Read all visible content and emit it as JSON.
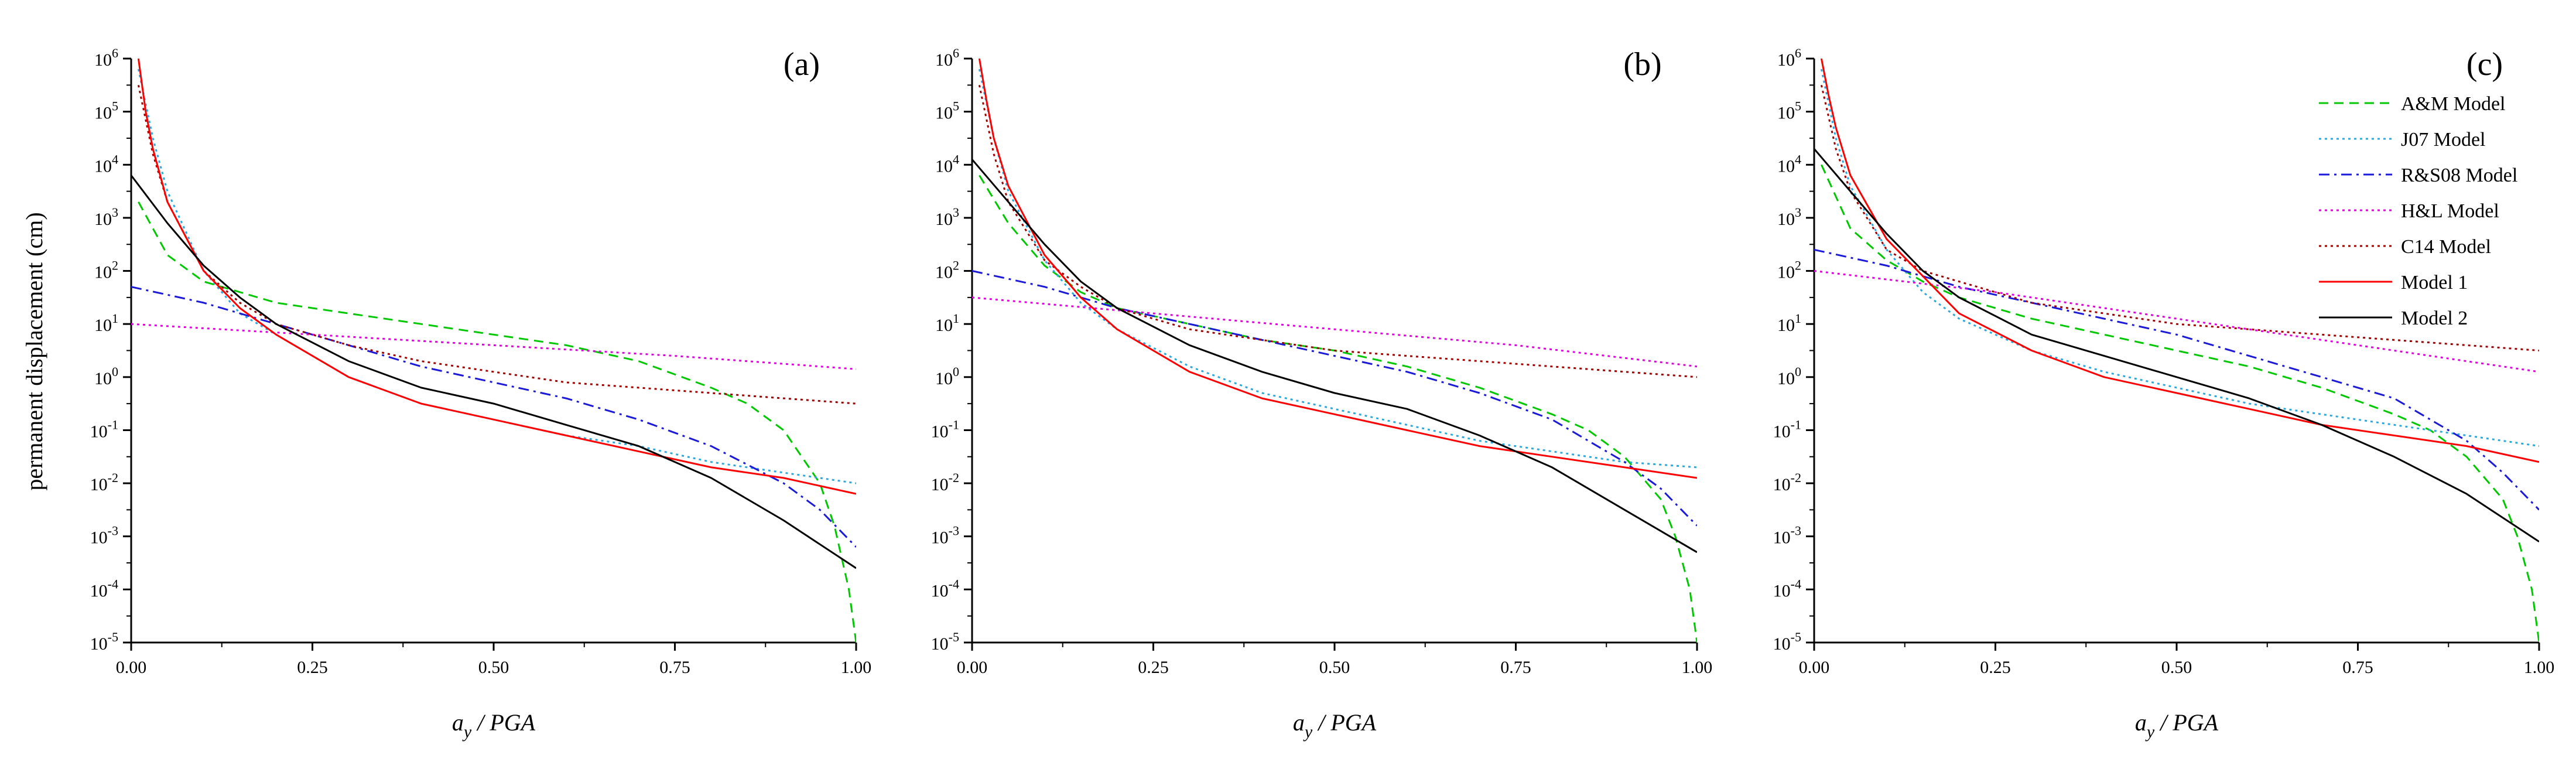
{
  "chart_data": {
    "type": "line",
    "ylabel": "permanent displacement (cm)",
    "xlabel": {
      "main": "a",
      "sub": "y",
      "rest": " / PGA"
    },
    "x_ticks": [
      "0.00",
      "0.25",
      "0.50",
      "0.75",
      "1.00"
    ],
    "y_ticks": [
      {
        "base": "10",
        "exp": "6"
      },
      {
        "base": "10",
        "exp": "5"
      },
      {
        "base": "10",
        "exp": "4"
      },
      {
        "base": "10",
        "exp": "3"
      },
      {
        "base": "10",
        "exp": "2"
      },
      {
        "base": "10",
        "exp": "1"
      },
      {
        "base": "10",
        "exp": "0"
      },
      {
        "base": "10",
        "exp": "-1"
      },
      {
        "base": "10",
        "exp": "-2"
      },
      {
        "base": "10",
        "exp": "-3"
      },
      {
        "base": "10",
        "exp": "-4"
      },
      {
        "base": "10",
        "exp": "-5"
      }
    ],
    "xlim": [
      0,
      1
    ],
    "ylim_log10": [
      -5,
      6
    ],
    "legend": [
      {
        "name": "A&M Model",
        "color": "#00c800",
        "dash": "dashed"
      },
      {
        "name": "J07 Model",
        "color": "#2aa8e0",
        "dash": "dotted"
      },
      {
        "name": "R&S08 Model",
        "color": "#1a1ad8",
        "dash": "dashdot"
      },
      {
        "name": "H&L Model",
        "color": "#e000e0",
        "dash": "dotted"
      },
      {
        "name": "C14 Model",
        "color": "#a00000",
        "dash": "dotted"
      },
      {
        "name": "Model 1",
        "color": "#ff0000",
        "dash": "solid"
      },
      {
        "name": "Model 2",
        "color": "#000000",
        "dash": "solid"
      }
    ],
    "panels": [
      {
        "label": "(a)",
        "series": [
          {
            "name": "A&M Model",
            "x": [
              0.01,
              0.05,
              0.1,
              0.2,
              0.3,
              0.4,
              0.5,
              0.6,
              0.7,
              0.8,
              0.85,
              0.9,
              0.95,
              0.97,
              0.99,
              1.0
            ],
            "log10y": [
              3.3,
              2.3,
              1.8,
              1.4,
              1.2,
              1.0,
              0.8,
              0.6,
              0.3,
              -0.2,
              -0.5,
              -1.0,
              -2.0,
              -2.8,
              -4.0,
              -5.0
            ]
          },
          {
            "name": "J07 Model",
            "x": [
              0.01,
              0.03,
              0.05,
              0.1,
              0.15,
              0.2,
              0.3,
              0.4,
              0.5,
              0.6,
              0.7,
              0.8,
              0.9,
              1.0
            ],
            "log10y": [
              5.8,
              4.5,
              3.5,
              2.0,
              1.2,
              0.8,
              0.0,
              -0.5,
              -0.8,
              -1.1,
              -1.3,
              -1.6,
              -1.8,
              -2.0
            ]
          },
          {
            "name": "R&S08 Model",
            "x": [
              0.0,
              0.1,
              0.2,
              0.3,
              0.4,
              0.5,
              0.6,
              0.7,
              0.8,
              0.9,
              0.95,
              1.0
            ],
            "log10y": [
              1.7,
              1.4,
              1.0,
              0.6,
              0.2,
              -0.1,
              -0.4,
              -0.8,
              -1.3,
              -2.0,
              -2.5,
              -3.2
            ]
          },
          {
            "name": "H&L Model",
            "x": [
              0.0,
              0.25,
              0.5,
              0.75,
              1.0
            ],
            "log10y": [
              1.0,
              0.8,
              0.6,
              0.4,
              0.15
            ]
          },
          {
            "name": "C14 Model",
            "x": [
              0.01,
              0.03,
              0.05,
              0.1,
              0.15,
              0.2,
              0.3,
              0.4,
              0.5,
              0.6,
              0.7,
              0.8,
              0.9,
              1.0
            ],
            "log10y": [
              5.5,
              4.2,
              3.3,
              2.0,
              1.4,
              1.0,
              0.6,
              0.3,
              0.1,
              -0.1,
              -0.2,
              -0.3,
              -0.4,
              -0.5
            ]
          },
          {
            "name": "Model 1",
            "x": [
              0.01,
              0.02,
              0.03,
              0.05,
              0.1,
              0.15,
              0.2,
              0.3,
              0.4,
              0.5,
              0.6,
              0.7,
              0.8,
              0.9,
              1.0
            ],
            "log10y": [
              6.0,
              5.0,
              4.3,
              3.3,
              2.0,
              1.3,
              0.8,
              0.0,
              -0.5,
              -0.8,
              -1.1,
              -1.4,
              -1.7,
              -1.9,
              -2.2
            ]
          },
          {
            "name": "Model 2",
            "x": [
              0.0,
              0.05,
              0.1,
              0.15,
              0.2,
              0.3,
              0.4,
              0.5,
              0.6,
              0.7,
              0.8,
              0.9,
              1.0
            ],
            "log10y": [
              3.8,
              2.9,
              2.1,
              1.5,
              1.0,
              0.3,
              -0.2,
              -0.5,
              -0.9,
              -1.3,
              -1.9,
              -2.7,
              -3.6
            ]
          }
        ]
      },
      {
        "label": "(b)",
        "series": [
          {
            "name": "A&M Model",
            "x": [
              0.01,
              0.05,
              0.1,
              0.15,
              0.2,
              0.3,
              0.4,
              0.5,
              0.6,
              0.7,
              0.8,
              0.85,
              0.9,
              0.95,
              0.97,
              0.99,
              1.0
            ],
            "log10y": [
              3.8,
              2.9,
              2.1,
              1.6,
              1.3,
              1.0,
              0.7,
              0.5,
              0.2,
              -0.2,
              -0.7,
              -1.0,
              -1.5,
              -2.3,
              -3.0,
              -4.0,
              -5.0
            ]
          },
          {
            "name": "J07 Model",
            "x": [
              0.01,
              0.03,
              0.05,
              0.1,
              0.15,
              0.2,
              0.3,
              0.4,
              0.5,
              0.6,
              0.7,
              0.8,
              0.9,
              1.0
            ],
            "log10y": [
              5.8,
              4.5,
              3.5,
              2.2,
              1.4,
              0.9,
              0.2,
              -0.3,
              -0.6,
              -0.9,
              -1.2,
              -1.4,
              -1.6,
              -1.7
            ]
          },
          {
            "name": "R&S08 Model",
            "x": [
              0.0,
              0.1,
              0.2,
              0.3,
              0.4,
              0.5,
              0.6,
              0.7,
              0.8,
              0.9,
              0.95,
              1.0
            ],
            "log10y": [
              2.0,
              1.7,
              1.3,
              1.0,
              0.7,
              0.4,
              0.1,
              -0.3,
              -0.8,
              -1.6,
              -2.1,
              -2.8
            ]
          },
          {
            "name": "H&L Model",
            "x": [
              0.0,
              0.25,
              0.5,
              0.75,
              1.0
            ],
            "log10y": [
              1.5,
              1.2,
              0.9,
              0.6,
              0.2
            ]
          },
          {
            "name": "C14 Model",
            "x": [
              0.01,
              0.03,
              0.05,
              0.1,
              0.15,
              0.2,
              0.3,
              0.4,
              0.5,
              0.6,
              0.7,
              0.8,
              0.9,
              1.0
            ],
            "log10y": [
              5.5,
              4.2,
              3.3,
              2.2,
              1.7,
              1.3,
              0.9,
              0.7,
              0.5,
              0.4,
              0.3,
              0.2,
              0.1,
              0.0
            ]
          },
          {
            "name": "Model 1",
            "x": [
              0.01,
              0.02,
              0.03,
              0.05,
              0.1,
              0.15,
              0.2,
              0.3,
              0.4,
              0.5,
              0.6,
              0.7,
              0.8,
              0.9,
              1.0
            ],
            "log10y": [
              6.0,
              5.2,
              4.5,
              3.6,
              2.3,
              1.5,
              0.9,
              0.1,
              -0.4,
              -0.7,
              -1.0,
              -1.3,
              -1.5,
              -1.7,
              -1.9
            ]
          },
          {
            "name": "Model 2",
            "x": [
              0.0,
              0.05,
              0.1,
              0.15,
              0.2,
              0.3,
              0.4,
              0.5,
              0.6,
              0.7,
              0.8,
              0.9,
              1.0
            ],
            "log10y": [
              4.1,
              3.3,
              2.5,
              1.8,
              1.3,
              0.6,
              0.1,
              -0.3,
              -0.6,
              -1.1,
              -1.7,
              -2.5,
              -3.3
            ]
          }
        ]
      },
      {
        "label": "(c)",
        "series": [
          {
            "name": "A&M Model",
            "x": [
              0.01,
              0.05,
              0.1,
              0.15,
              0.2,
              0.3,
              0.4,
              0.5,
              0.6,
              0.7,
              0.8,
              0.85,
              0.9,
              0.95,
              0.97,
              0.99,
              1.0
            ],
            "log10y": [
              4.0,
              2.8,
              2.2,
              1.8,
              1.5,
              1.1,
              0.8,
              0.5,
              0.2,
              -0.2,
              -0.7,
              -1.0,
              -1.5,
              -2.3,
              -3.0,
              -4.0,
              -5.0
            ]
          },
          {
            "name": "J07 Model",
            "x": [
              0.01,
              0.03,
              0.05,
              0.1,
              0.15,
              0.2,
              0.3,
              0.4,
              0.5,
              0.6,
              0.7,
              0.8,
              0.9,
              1.0
            ],
            "log10y": [
              5.8,
              4.5,
              3.6,
              2.4,
              1.6,
              1.1,
              0.5,
              0.1,
              -0.2,
              -0.5,
              -0.7,
              -0.9,
              -1.1,
              -1.3
            ]
          },
          {
            "name": "R&S08 Model",
            "x": [
              0.0,
              0.1,
              0.2,
              0.3,
              0.4,
              0.5,
              0.6,
              0.7,
              0.8,
              0.9,
              0.95,
              1.0
            ],
            "log10y": [
              2.4,
              2.1,
              1.7,
              1.4,
              1.1,
              0.8,
              0.4,
              0.0,
              -0.4,
              -1.2,
              -1.8,
              -2.5
            ]
          },
          {
            "name": "H&L Model",
            "x": [
              0.0,
              0.25,
              0.5,
              0.75,
              1.0
            ],
            "log10y": [
              2.0,
              1.6,
              1.1,
              0.6,
              0.1
            ]
          },
          {
            "name": "C14 Model",
            "x": [
              0.01,
              0.03,
              0.05,
              0.1,
              0.15,
              0.2,
              0.3,
              0.4,
              0.5,
              0.6,
              0.7,
              0.8,
              0.9,
              1.0
            ],
            "log10y": [
              5.5,
              4.3,
              3.5,
              2.4,
              2.0,
              1.8,
              1.4,
              1.2,
              1.0,
              0.9,
              0.8,
              0.7,
              0.6,
              0.5
            ]
          },
          {
            "name": "Model 1",
            "x": [
              0.01,
              0.02,
              0.03,
              0.05,
              0.1,
              0.15,
              0.2,
              0.3,
              0.4,
              0.5,
              0.6,
              0.7,
              0.8,
              0.9,
              1.0
            ],
            "log10y": [
              6.0,
              5.3,
              4.7,
              3.8,
              2.6,
              1.9,
              1.2,
              0.5,
              0.0,
              -0.3,
              -0.6,
              -0.9,
              -1.1,
              -1.3,
              -1.6
            ]
          },
          {
            "name": "Model 2",
            "x": [
              0.0,
              0.05,
              0.1,
              0.15,
              0.2,
              0.3,
              0.4,
              0.5,
              0.6,
              0.7,
              0.8,
              0.9,
              1.0
            ],
            "log10y": [
              4.3,
              3.5,
              2.7,
              2.0,
              1.5,
              0.8,
              0.4,
              0.0,
              -0.4,
              -0.9,
              -1.5,
              -2.2,
              -3.1
            ]
          }
        ]
      }
    ]
  }
}
